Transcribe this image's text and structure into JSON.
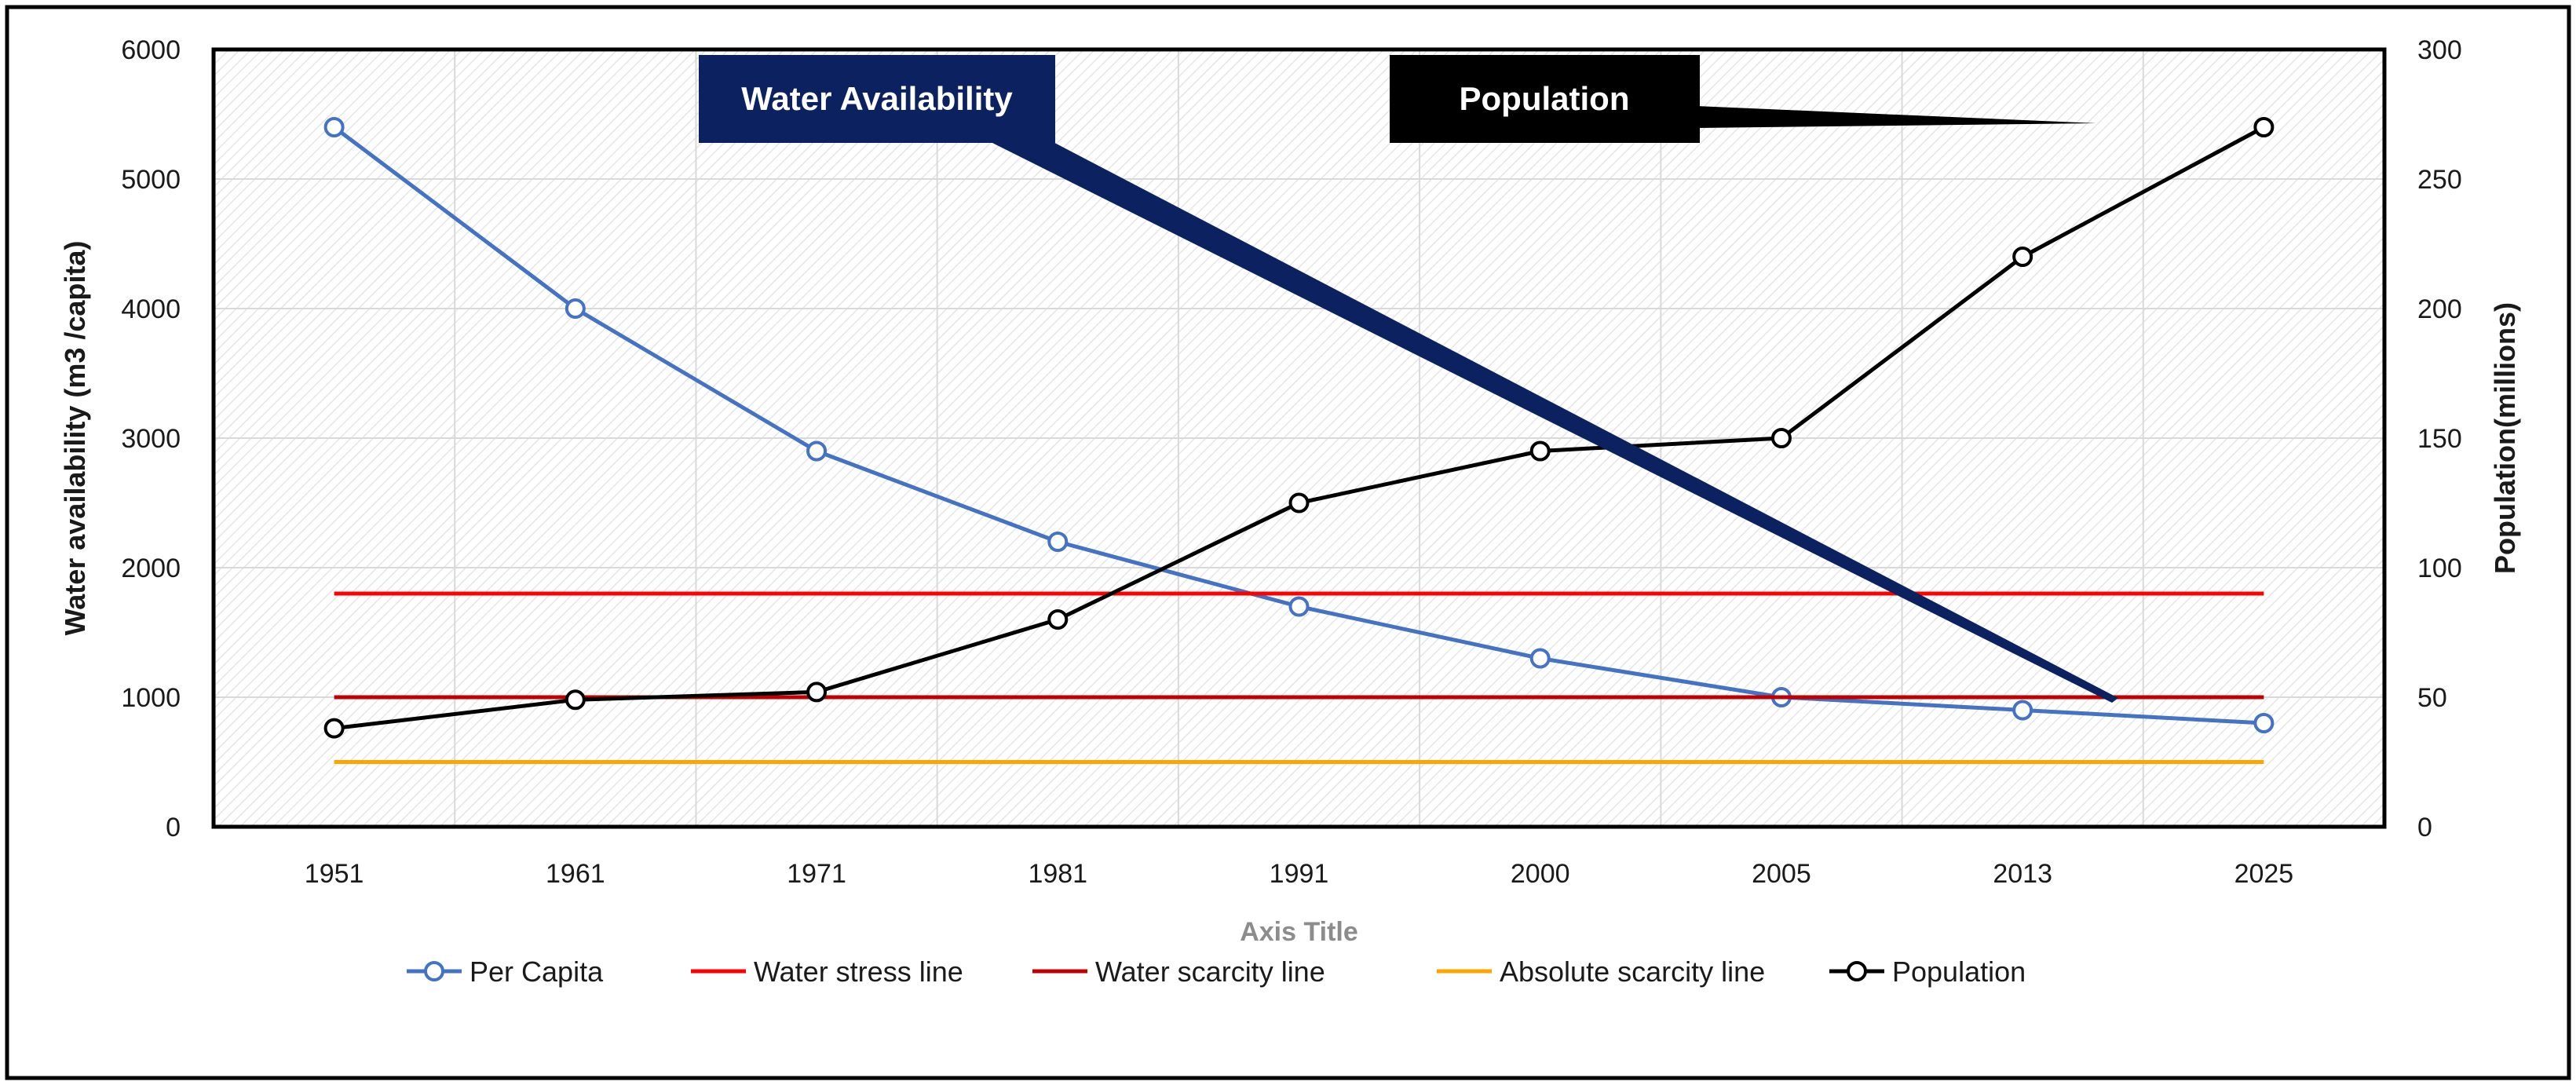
{
  "chart_data": {
    "type": "line",
    "categories": [
      "1951",
      "1961",
      "1971",
      "1981",
      "1991",
      "2000",
      "2005",
      "2013",
      "2025"
    ],
    "series": [
      {
        "name": "Per Capita",
        "axis": "left",
        "color": "#4472c4",
        "marker": "circle",
        "values": [
          5400,
          4000,
          2900,
          2200,
          1700,
          1300,
          1000,
          900,
          800
        ]
      },
      {
        "name": "Water stress line",
        "axis": "left",
        "color": "#ff0000",
        "marker": "none",
        "values": [
          1800,
          1800,
          1800,
          1800,
          1800,
          1800,
          1800,
          1800,
          1800
        ]
      },
      {
        "name": "Water scarcity line",
        "axis": "left",
        "color": "#c00000",
        "marker": "none",
        "values": [
          1000,
          1000,
          1000,
          1000,
          1000,
          1000,
          1000,
          1000,
          1000
        ]
      },
      {
        "name": "Absolute scarcity line",
        "axis": "left",
        "color": "#ffa500",
        "marker": "none",
        "values": [
          500,
          500,
          500,
          500,
          500,
          500,
          500,
          500,
          500
        ]
      },
      {
        "name": "Population",
        "axis": "right",
        "color": "#000000",
        "marker": "circle",
        "values": [
          38,
          49,
          52,
          80,
          125,
          145,
          150,
          220,
          270
        ]
      }
    ],
    "y_left": {
      "label": "Water availability (m3 /capita)",
      "min": 0,
      "max": 6000,
      "ticks": [
        0,
        1000,
        2000,
        3000,
        4000,
        5000,
        6000
      ]
    },
    "y_right": {
      "label": "Population(millions)",
      "min": 0,
      "max": 300,
      "ticks": [
        0,
        50,
        100,
        150,
        200,
        250,
        300
      ]
    },
    "xlabel": "Axis Title",
    "grid": true,
    "legend_position": "bottom",
    "annotations": [
      {
        "text": "Water Availability",
        "color": "#0b2160",
        "text_color": "#ffffff"
      },
      {
        "text": "Population",
        "color": "#000000",
        "text_color": "#ffffff"
      }
    ]
  }
}
